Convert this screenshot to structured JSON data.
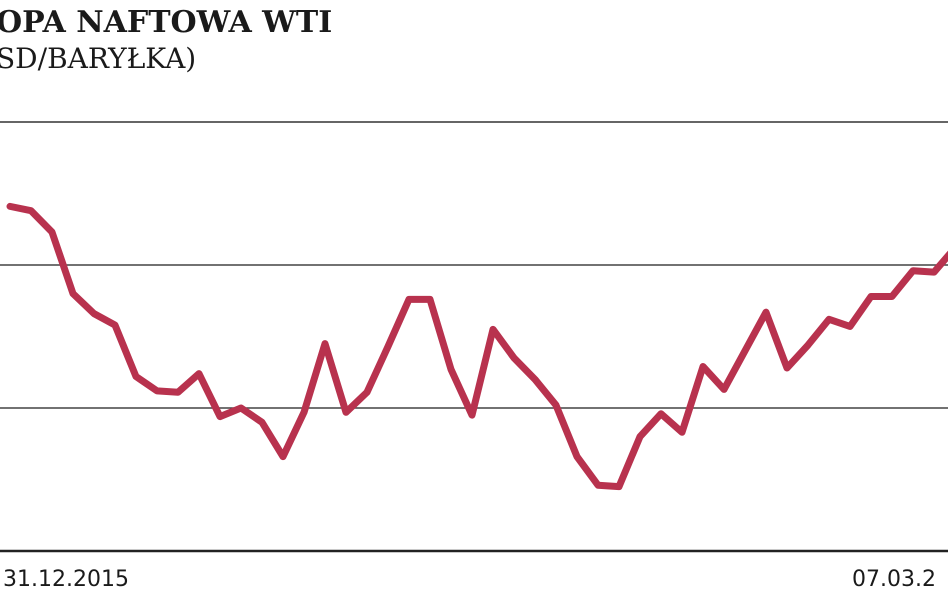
{
  "chart_data": {
    "type": "line",
    "title": "OPA NAFTOWA WTI",
    "subtitle": "SD/BARYŁKA)",
    "categories": [
      "31.12.2015",
      null,
      null,
      null,
      null,
      null,
      null,
      null,
      null,
      null,
      null,
      null,
      null,
      null,
      null,
      null,
      null,
      null,
      null,
      null,
      null,
      null,
      null,
      null,
      null,
      null,
      null,
      null,
      null,
      null,
      null,
      null,
      null,
      null,
      null,
      null,
      null,
      null,
      null,
      null,
      null,
      null,
      null,
      null,
      null,
      "07.03.2"
    ],
    "series": [
      {
        "color": "#b8324e",
        "values": [
          2.41,
          2.38,
          2.23,
          1.8,
          1.66,
          1.58,
          1.22,
          1.12,
          1.11,
          1.24,
          0.94,
          1.0,
          0.9,
          0.66,
          0.97,
          1.45,
          0.97,
          1.11,
          1.43,
          1.76,
          1.76,
          1.27,
          0.95,
          1.55,
          1.35,
          1.2,
          1.02,
          0.66,
          0.46,
          0.45,
          0.8,
          0.96,
          0.83,
          1.29,
          1.13,
          1.4,
          1.67,
          1.28,
          1.44,
          1.62,
          1.57,
          1.78,
          1.78,
          1.96,
          1.95,
          2.12
        ]
      }
    ],
    "ylim": [
      0,
      3
    ],
    "yticks": [
      1,
      2
    ],
    "grid": true
  }
}
